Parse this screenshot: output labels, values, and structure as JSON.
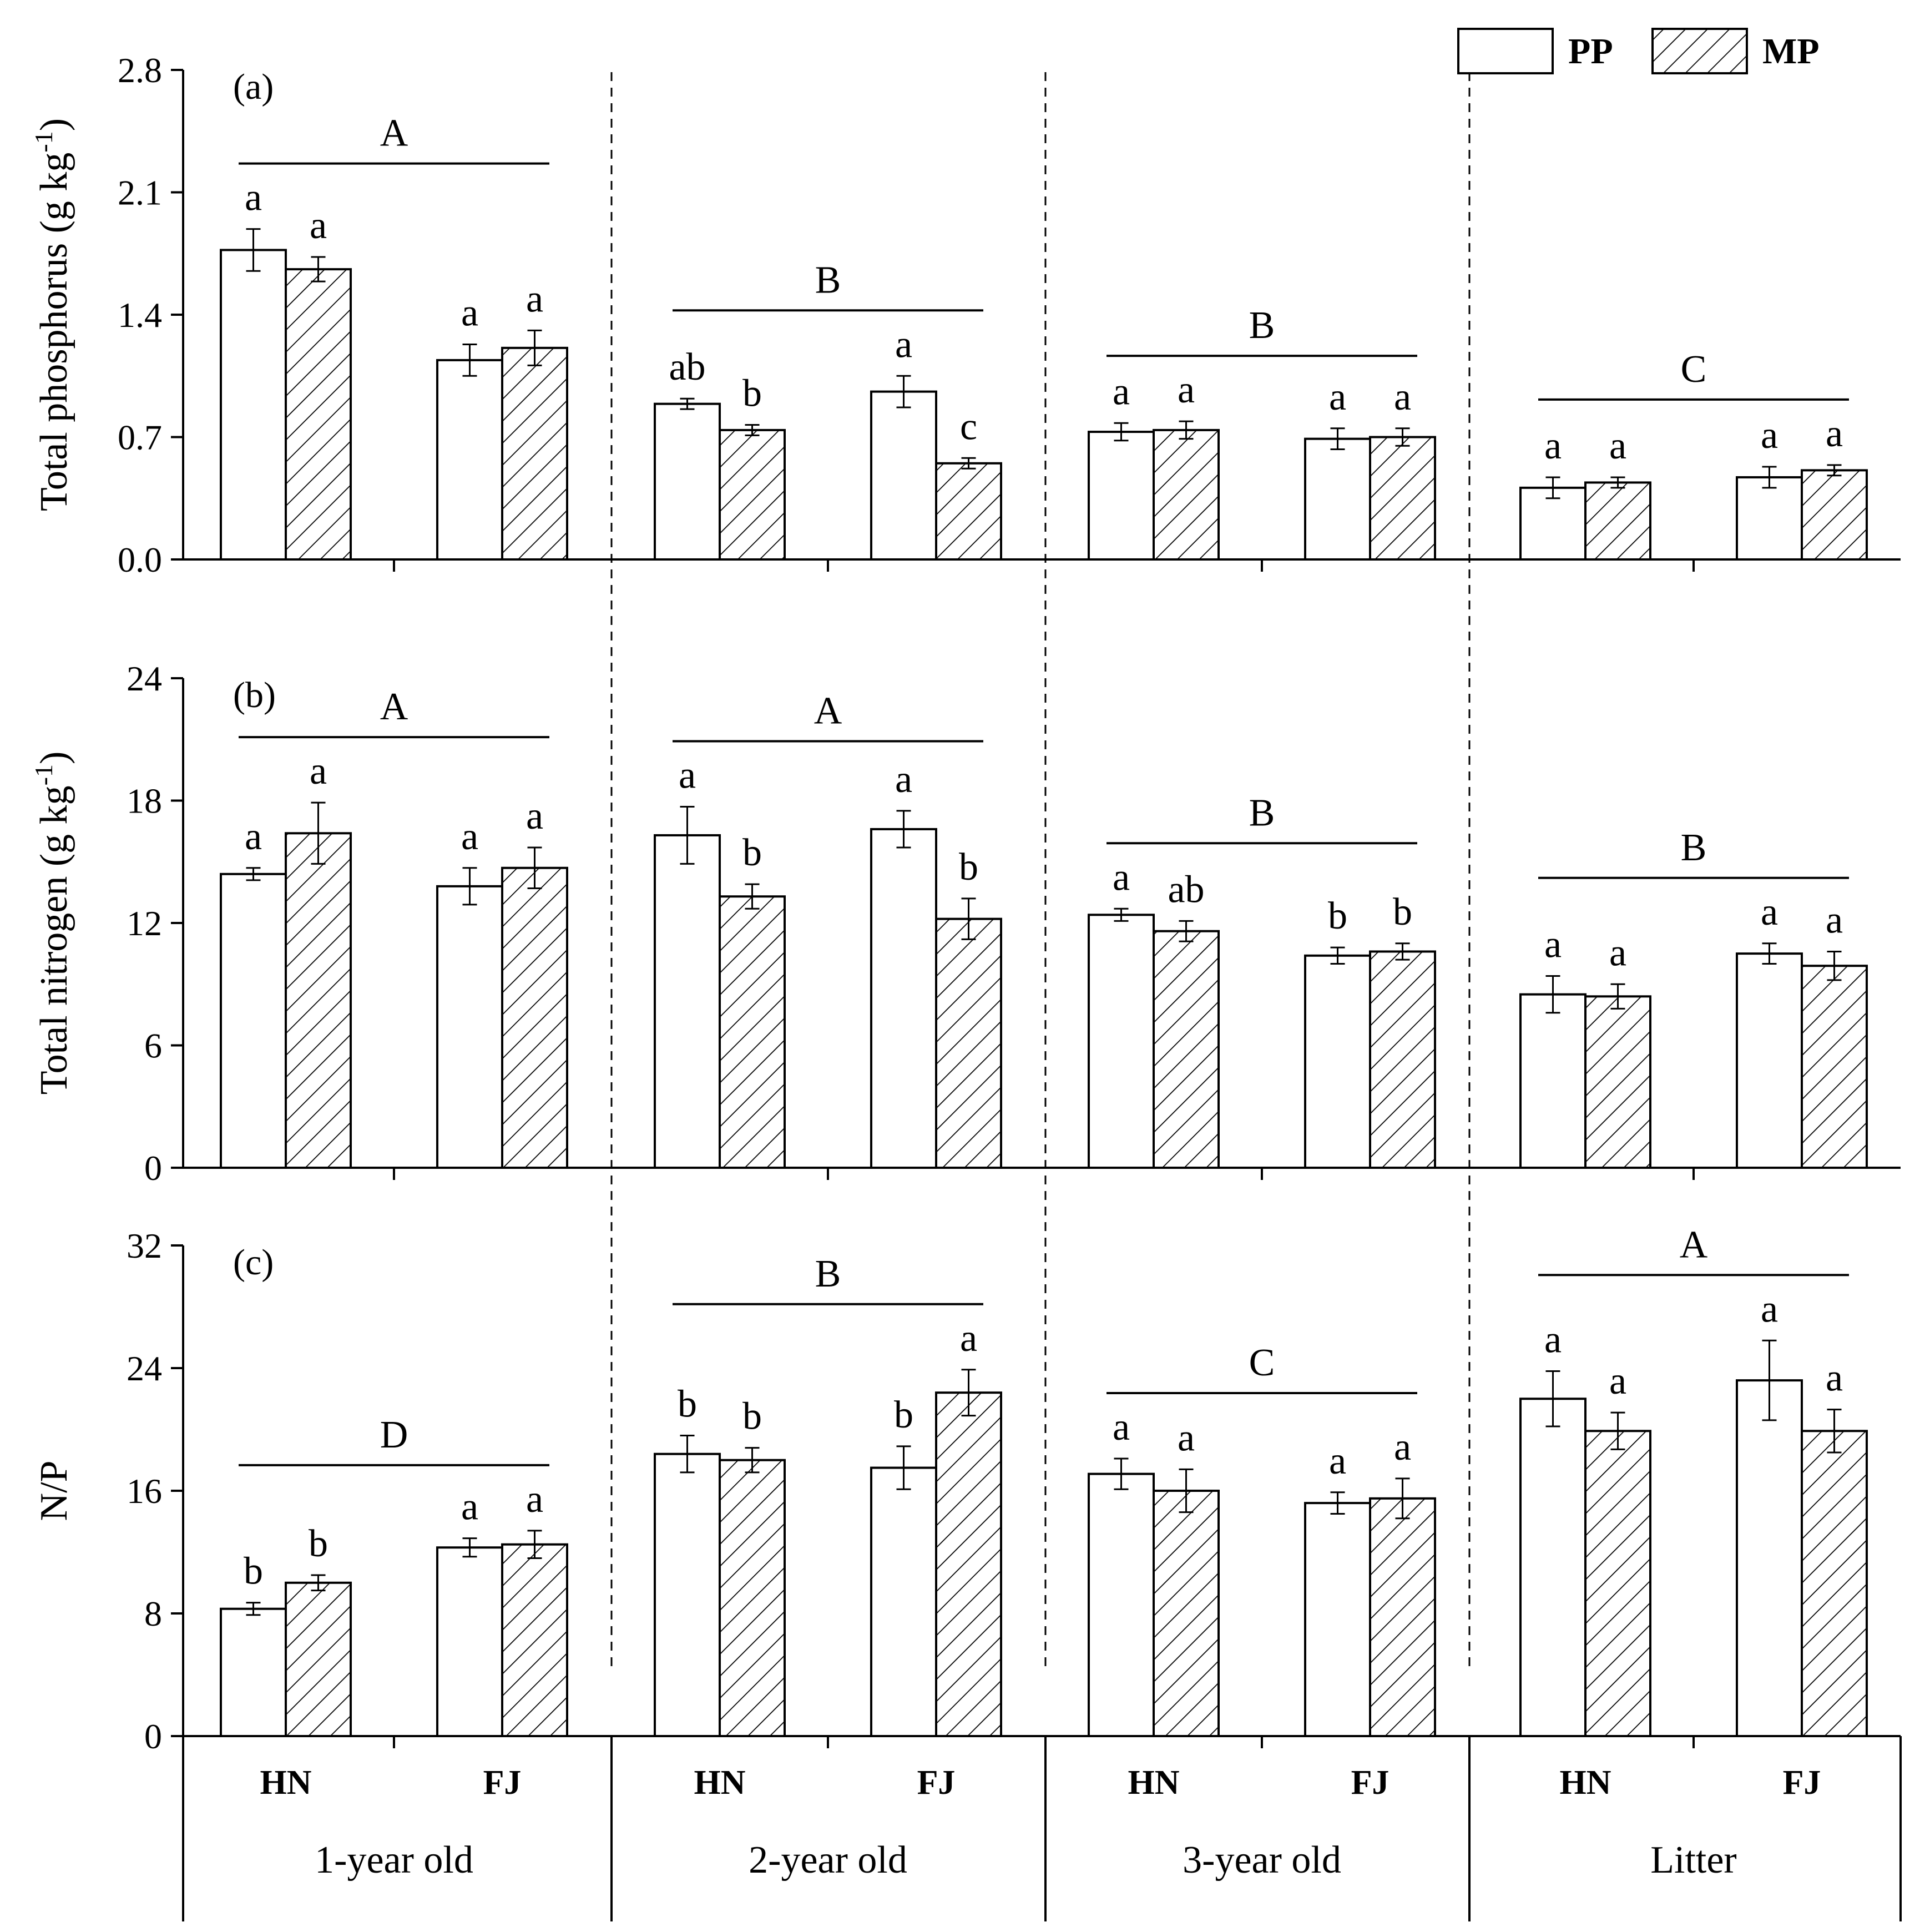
{
  "chart_data": {
    "type": "bar",
    "legend": {
      "position": "top-right",
      "items": [
        {
          "name": "PP",
          "pattern": "open"
        },
        {
          "name": "MP",
          "pattern": "hatched"
        }
      ]
    },
    "age_groups": [
      "1-year old",
      "2-year old",
      "3-year old",
      "Litter"
    ],
    "sites": [
      "HN",
      "FJ"
    ],
    "series": [
      "PP",
      "MP"
    ],
    "panels": [
      {
        "tag": "(a)",
        "ylabel_main": "Total phosphorus (g kg",
        "ylabel_sup": "-1",
        "ylabel_close": ")",
        "ylim": [
          0,
          2.8
        ],
        "yticks": [
          "0.0",
          "0.7",
          "1.4",
          "2.1",
          "2.8"
        ],
        "group_letters": [
          "A",
          "B",
          "B",
          "C"
        ],
        "values": [
          [
            [
              1.77,
              0.12,
              "a"
            ],
            [
              1.66,
              0.07,
              "a"
            ],
            [
              1.14,
              0.09,
              "a"
            ],
            [
              1.21,
              0.1,
              "a"
            ]
          ],
          [
            [
              0.89,
              0.03,
              "ab"
            ],
            [
              0.74,
              0.03,
              "b"
            ],
            [
              0.96,
              0.09,
              "a"
            ],
            [
              0.55,
              0.03,
              "c"
            ]
          ],
          [
            [
              0.73,
              0.05,
              "a"
            ],
            [
              0.74,
              0.05,
              "a"
            ],
            [
              0.69,
              0.06,
              "a"
            ],
            [
              0.7,
              0.05,
              "a"
            ]
          ],
          [
            [
              0.41,
              0.06,
              "a"
            ],
            [
              0.44,
              0.03,
              "a"
            ],
            [
              0.47,
              0.06,
              "a"
            ],
            [
              0.51,
              0.03,
              "a"
            ]
          ]
        ]
      },
      {
        "tag": "(b)",
        "ylabel_main": "Total nitrogen (g kg",
        "ylabel_sup": "-1",
        "ylabel_close": ")",
        "ylim": [
          0,
          24
        ],
        "yticks": [
          "0",
          "6",
          "12",
          "18",
          "24"
        ],
        "group_letters": [
          "A",
          "A",
          "B",
          "B"
        ],
        "values": [
          [
            [
              14.4,
              0.3,
              "a"
            ],
            [
              16.4,
              1.5,
              "a"
            ],
            [
              13.8,
              0.9,
              "a"
            ],
            [
              14.7,
              1.0,
              "a"
            ]
          ],
          [
            [
              16.3,
              1.4,
              "a"
            ],
            [
              13.3,
              0.6,
              "b"
            ],
            [
              16.6,
              0.9,
              "a"
            ],
            [
              12.2,
              1.0,
              "b"
            ]
          ],
          [
            [
              12.4,
              0.3,
              "a"
            ],
            [
              11.6,
              0.5,
              "ab"
            ],
            [
              10.4,
              0.4,
              "b"
            ],
            [
              10.6,
              0.4,
              "b"
            ]
          ],
          [
            [
              8.5,
              0.9,
              "a"
            ],
            [
              8.4,
              0.6,
              "a"
            ],
            [
              10.5,
              0.5,
              "a"
            ],
            [
              9.9,
              0.7,
              "a"
            ]
          ]
        ]
      },
      {
        "tag": "(c)",
        "ylabel_main": "N/P",
        "ylabel_sup": "",
        "ylabel_close": "",
        "ylim": [
          0,
          32
        ],
        "yticks": [
          "0",
          "8",
          "16",
          "24",
          "32"
        ],
        "group_letters": [
          "D",
          "B",
          "C",
          "A"
        ],
        "values": [
          [
            [
              8.3,
              0.4,
              "b"
            ],
            [
              10.0,
              0.5,
              "b"
            ],
            [
              12.3,
              0.6,
              "a"
            ],
            [
              12.5,
              0.9,
              "a"
            ]
          ],
          [
            [
              18.4,
              1.2,
              "b"
            ],
            [
              18.0,
              0.8,
              "b"
            ],
            [
              17.5,
              1.4,
              "b"
            ],
            [
              22.4,
              1.5,
              "a"
            ]
          ],
          [
            [
              17.1,
              1.0,
              "a"
            ],
            [
              16.0,
              1.4,
              "a"
            ],
            [
              15.2,
              0.7,
              "a"
            ],
            [
              15.5,
              1.3,
              "a"
            ]
          ],
          [
            [
              22.0,
              1.8,
              "a"
            ],
            [
              19.9,
              1.2,
              "a"
            ],
            [
              23.2,
              2.6,
              "a"
            ],
            [
              19.9,
              1.4,
              "a"
            ]
          ]
        ]
      }
    ]
  }
}
